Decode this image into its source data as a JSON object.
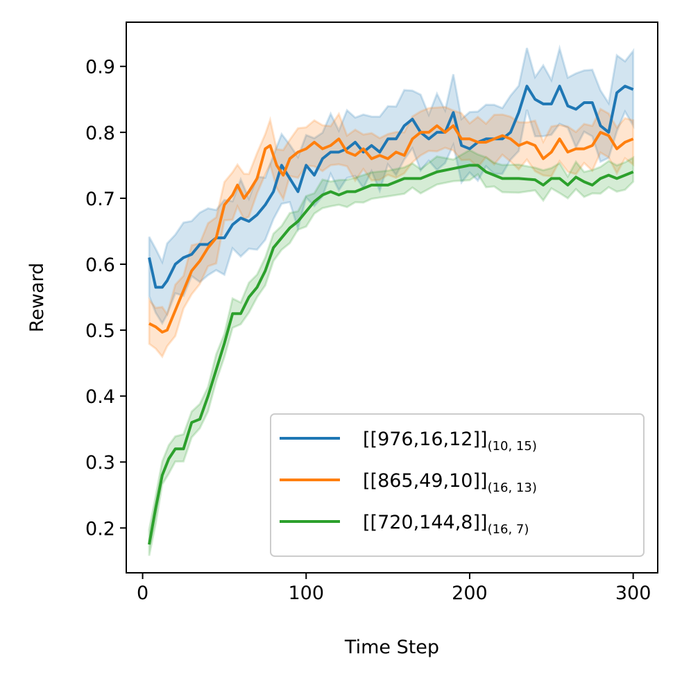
{
  "chart_data": {
    "type": "line",
    "title": "",
    "xlabel": "Time Step",
    "ylabel": "Reward",
    "xlim": [
      -10,
      315
    ],
    "ylim": [
      0.132,
      0.967
    ],
    "xticks": [
      "0",
      "100",
      "200",
      "300"
    ],
    "yticks": [
      "0.2",
      "0.3",
      "0.4",
      "0.5",
      "0.6",
      "0.7",
      "0.8",
      "0.9"
    ],
    "grid": false,
    "legend_position": "bottom-right",
    "series": [
      {
        "name": "[[976,16,12]]",
        "subscript": "(10, 15)",
        "color": "#1f77b4",
        "band": 0.045,
        "x": [
          4,
          8,
          12,
          15,
          20,
          25,
          30,
          35,
          40,
          45,
          50,
          55,
          60,
          65,
          70,
          75,
          80,
          85,
          90,
          95,
          100,
          105,
          110,
          115,
          120,
          125,
          130,
          135,
          140,
          145,
          150,
          155,
          160,
          165,
          170,
          175,
          180,
          185,
          190,
          195,
          200,
          205,
          210,
          215,
          220,
          225,
          230,
          235,
          240,
          245,
          250,
          255,
          260,
          265,
          270,
          275,
          280,
          285,
          290,
          295,
          300
        ],
        "y": [
          0.61,
          0.565,
          0.565,
          0.575,
          0.6,
          0.61,
          0.615,
          0.63,
          0.63,
          0.64,
          0.64,
          0.66,
          0.67,
          0.665,
          0.675,
          0.69,
          0.71,
          0.75,
          0.73,
          0.71,
          0.75,
          0.735,
          0.76,
          0.77,
          0.77,
          0.775,
          0.785,
          0.77,
          0.78,
          0.77,
          0.79,
          0.79,
          0.81,
          0.82,
          0.8,
          0.79,
          0.8,
          0.8,
          0.83,
          0.78,
          0.775,
          0.785,
          0.79,
          0.79,
          0.79,
          0.8,
          0.83,
          0.87,
          0.85,
          0.843,
          0.843,
          0.87,
          0.84,
          0.835,
          0.845,
          0.845,
          0.81,
          0.8,
          0.86,
          0.87,
          0.865
        ]
      },
      {
        "name": "[[865,49,10]]",
        "subscript": "(16, 13)",
        "color": "#ff7f0e",
        "band": 0.03,
        "x": [
          4,
          8,
          12,
          15,
          20,
          25,
          30,
          35,
          40,
          45,
          50,
          55,
          58,
          62,
          65,
          70,
          75,
          78,
          82,
          86,
          90,
          95,
          100,
          105,
          110,
          115,
          120,
          125,
          130,
          135,
          140,
          145,
          150,
          155,
          160,
          165,
          170,
          175,
          180,
          185,
          190,
          195,
          200,
          205,
          210,
          215,
          220,
          225,
          230,
          235,
          240,
          245,
          250,
          255,
          260,
          265,
          270,
          275,
          280,
          285,
          290,
          295,
          300
        ],
        "y": [
          0.51,
          0.505,
          0.497,
          0.5,
          0.53,
          0.56,
          0.59,
          0.605,
          0.625,
          0.64,
          0.69,
          0.705,
          0.72,
          0.7,
          0.71,
          0.73,
          0.775,
          0.78,
          0.75,
          0.735,
          0.76,
          0.77,
          0.775,
          0.785,
          0.775,
          0.78,
          0.79,
          0.77,
          0.765,
          0.775,
          0.76,
          0.765,
          0.76,
          0.77,
          0.765,
          0.79,
          0.8,
          0.8,
          0.81,
          0.8,
          0.81,
          0.79,
          0.79,
          0.785,
          0.785,
          0.79,
          0.795,
          0.79,
          0.78,
          0.785,
          0.78,
          0.76,
          0.77,
          0.79,
          0.77,
          0.775,
          0.775,
          0.78,
          0.8,
          0.795,
          0.775,
          0.785,
          0.79
        ]
      },
      {
        "name": "[[720,144,8]]",
        "subscript": "(16, 7)",
        "color": "#2ca02c",
        "band": 0.018,
        "x": [
          4,
          8,
          12,
          16,
          20,
          25,
          30,
          35,
          40,
          45,
          50,
          55,
          60,
          65,
          70,
          75,
          80,
          85,
          90,
          95,
          100,
          105,
          110,
          115,
          120,
          125,
          130,
          135,
          140,
          150,
          160,
          165,
          170,
          180,
          190,
          200,
          205,
          210,
          215,
          220,
          230,
          240,
          245,
          250,
          255,
          260,
          265,
          270,
          275,
          280,
          285,
          290,
          295,
          300
        ],
        "y": [
          0.175,
          0.23,
          0.28,
          0.305,
          0.32,
          0.32,
          0.36,
          0.365,
          0.4,
          0.44,
          0.48,
          0.525,
          0.525,
          0.55,
          0.565,
          0.59,
          0.625,
          0.64,
          0.655,
          0.665,
          0.68,
          0.695,
          0.705,
          0.71,
          0.705,
          0.71,
          0.71,
          0.715,
          0.72,
          0.72,
          0.73,
          0.73,
          0.73,
          0.74,
          0.745,
          0.75,
          0.75,
          0.74,
          0.735,
          0.73,
          0.73,
          0.728,
          0.72,
          0.73,
          0.73,
          0.72,
          0.732,
          0.725,
          0.72,
          0.73,
          0.735,
          0.73,
          0.735,
          0.74
        ]
      }
    ]
  }
}
